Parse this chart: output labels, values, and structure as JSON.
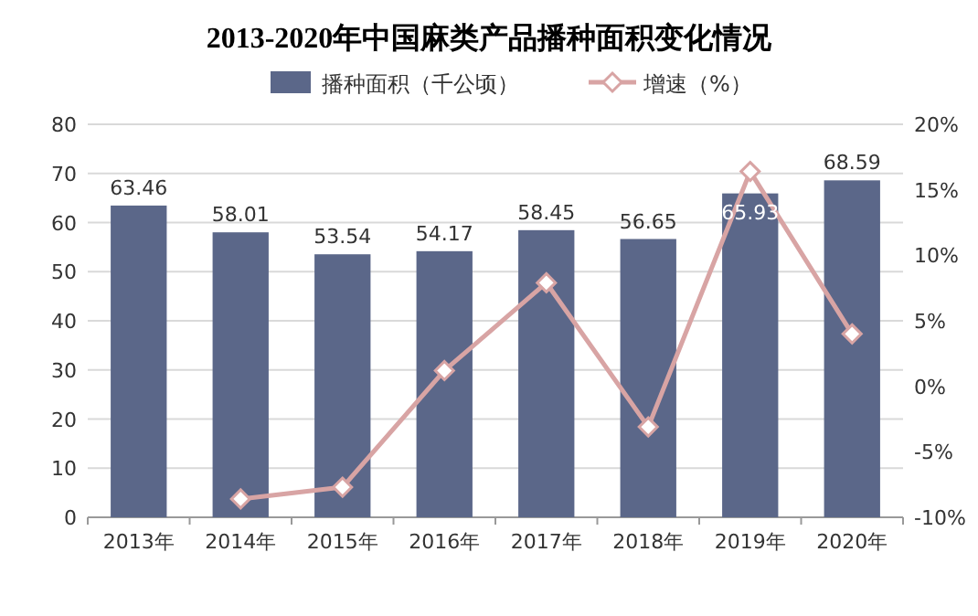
{
  "chart_data": {
    "type": "bar",
    "title": "2013-2020年中国麻类产品播种面积变化情况",
    "categories": [
      "2013年",
      "2014年",
      "2015年",
      "2016年",
      "2017年",
      "2018年",
      "2019年",
      "2020年"
    ],
    "series": [
      {
        "name": "播种面积（千公顷）",
        "color": "#5b6789",
        "values": [
          63.46,
          58.01,
          53.54,
          54.17,
          58.45,
          56.65,
          65.93,
          68.59
        ],
        "value_labels": [
          "63.46",
          "58.01",
          "53.54",
          "54.17",
          "58.45",
          "56.65",
          "65.93",
          "68.59"
        ]
      },
      {
        "name": "增速（%）",
        "type": "line",
        "axis": "y2",
        "color": "#d8a4a4",
        "marker": "diamond",
        "values": [
          null,
          -8.6,
          -7.7,
          1.2,
          7.9,
          -3.1,
          16.4,
          4.0
        ]
      }
    ],
    "ylim": [
      0,
      80
    ],
    "yticks": [
      0,
      10,
      20,
      30,
      40,
      50,
      60,
      70,
      80
    ],
    "y2lim": [
      -10,
      20
    ],
    "y2ticks": [
      {
        "value": -10,
        "label": "-10%"
      },
      {
        "value": -5,
        "label": "-5%"
      },
      {
        "value": 0,
        "label": "0%"
      },
      {
        "value": 5,
        "label": "5%"
      },
      {
        "value": 10,
        "label": "10%"
      },
      {
        "value": 15,
        "label": "15%"
      },
      {
        "value": 20,
        "label": "20%"
      }
    ],
    "grid": "y",
    "legend": "top"
  }
}
